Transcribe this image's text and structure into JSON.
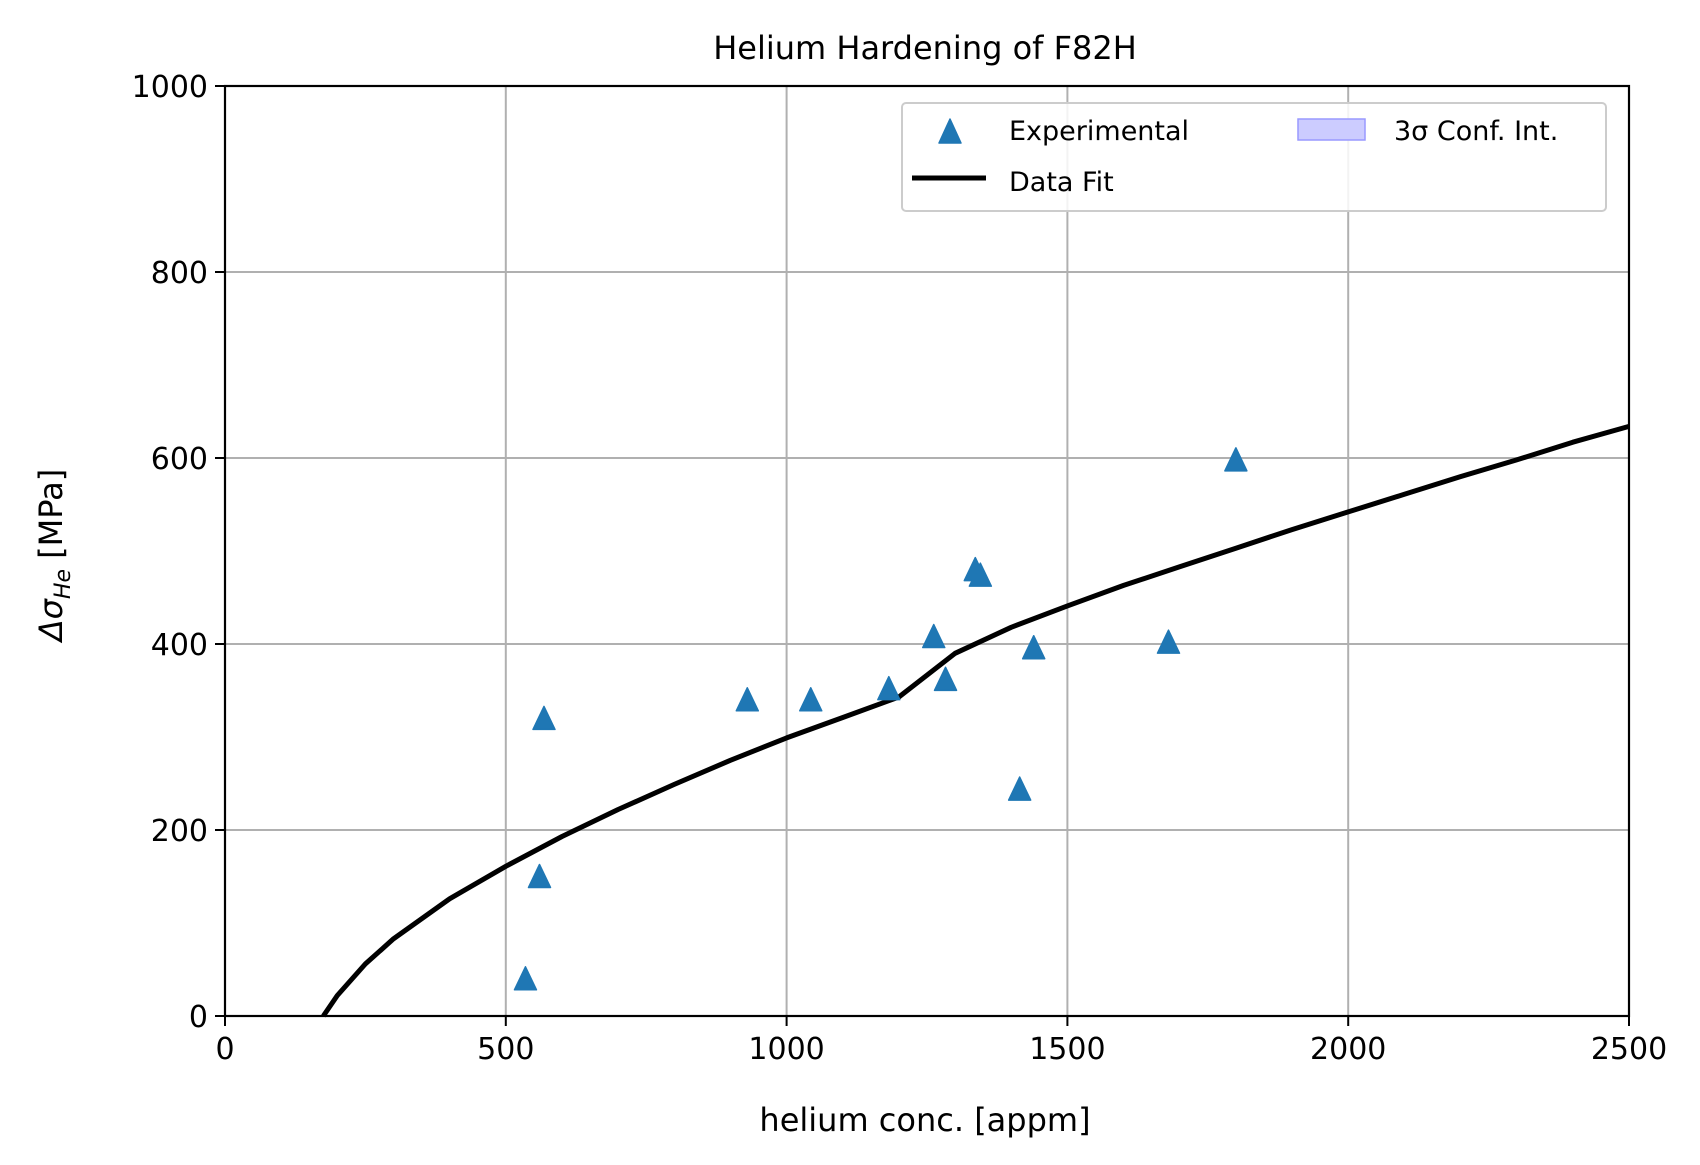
{
  "chart_data": {
    "type": "scatter",
    "title": "Helium Hardening of F82H",
    "xlabel": "helium conc. [appm]",
    "ylabel_prefix": "Δσ",
    "ylabel_sub": "He",
    "ylabel_suffix": " [MPa]",
    "xlim": [
      0,
      2500
    ],
    "ylim": [
      0,
      1000
    ],
    "xticks": [
      0,
      500,
      1000,
      1500,
      2000,
      2500
    ],
    "yticks": [
      0,
      200,
      400,
      600,
      800,
      1000
    ],
    "grid": true,
    "legend_position": "top-right",
    "colors": {
      "marker": "#1f77b4",
      "fit": "#000000",
      "band": "#ccccff",
      "grid": "#b0b0b0"
    },
    "series": [
      {
        "name": "Experimental",
        "kind": "scatter",
        "marker": "triangle",
        "points": [
          {
            "x": 535,
            "y": 40
          },
          {
            "x": 560,
            "y": 150
          },
          {
            "x": 568,
            "y": 320
          },
          {
            "x": 930,
            "y": 340
          },
          {
            "x": 1043,
            "y": 340
          },
          {
            "x": 1182,
            "y": 352
          },
          {
            "x": 1262,
            "y": 408
          },
          {
            "x": 1283,
            "y": 362
          },
          {
            "x": 1336,
            "y": 480
          },
          {
            "x": 1345,
            "y": 474
          },
          {
            "x": 1415,
            "y": 244
          },
          {
            "x": 1440,
            "y": 396
          },
          {
            "x": 1680,
            "y": 402
          },
          {
            "x": 1800,
            "y": 598
          }
        ]
      },
      {
        "name": "Data Fit",
        "kind": "line",
        "points": [
          {
            "x": 175,
            "y": 0
          },
          {
            "x": 200,
            "y": 22
          },
          {
            "x": 250,
            "y": 56
          },
          {
            "x": 300,
            "y": 83
          },
          {
            "x": 400,
            "y": 126
          },
          {
            "x": 500,
            "y": 161
          },
          {
            "x": 600,
            "y": 193
          },
          {
            "x": 700,
            "y": 222
          },
          {
            "x": 800,
            "y": 249
          },
          {
            "x": 900,
            "y": 275
          },
          {
            "x": 1000,
            "y": 299
          },
          {
            "x": 1100,
            "y": 321
          },
          {
            "x": 1200,
            "y": 343
          },
          {
            "x": 1300,
            "y": 390
          },
          {
            "x": 1400,
            "y": 418
          },
          {
            "x": 1500,
            "y": 441
          },
          {
            "x": 1600,
            "y": 463
          },
          {
            "x": 1700,
            "y": 483
          },
          {
            "x": 1800,
            "y": 503
          },
          {
            "x": 1900,
            "y": 523
          },
          {
            "x": 2000,
            "y": 542
          },
          {
            "x": 2100,
            "y": 561
          },
          {
            "x": 2200,
            "y": 580
          },
          {
            "x": 2300,
            "y": 598
          },
          {
            "x": 2400,
            "y": 617
          },
          {
            "x": 2500,
            "y": 634
          }
        ]
      },
      {
        "name": "3σ Conf. Int.",
        "kind": "band"
      }
    ]
  }
}
